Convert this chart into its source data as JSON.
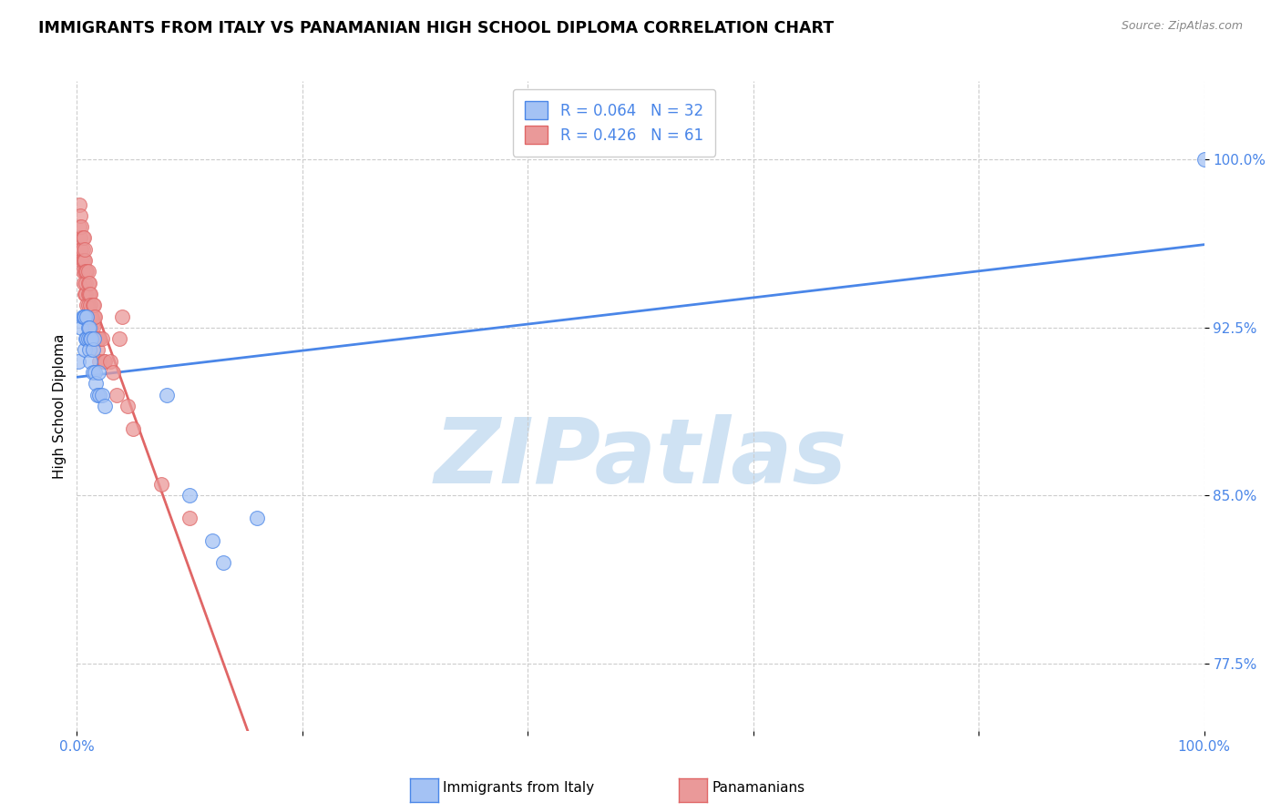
{
  "title": "IMMIGRANTS FROM ITALY VS PANAMANIAN HIGH SCHOOL DIPLOMA CORRELATION CHART",
  "source": "Source: ZipAtlas.com",
  "ylabel": "High School Diploma",
  "ytick_labels": [
    "77.5%",
    "85.0%",
    "92.5%",
    "100.0%"
  ],
  "ytick_values": [
    0.775,
    0.85,
    0.925,
    1.0
  ],
  "legend_label1": "Immigrants from Italy",
  "legend_label2": "Panamanians",
  "r_italy": "0.064",
  "n_italy": "32",
  "r_panama": "0.426",
  "n_panama": "61",
  "color_italy": "#a4c2f4",
  "color_panama": "#ea9999",
  "color_italy_line": "#4a86e8",
  "color_panama_line": "#e06666",
  "watermark_text": "ZIPatlas",
  "watermark_color": "#cfe2f3",
  "background_color": "#ffffff",
  "italy_x": [
    0.001,
    0.004,
    0.005,
    0.006,
    0.007,
    0.007,
    0.008,
    0.009,
    0.009,
    0.01,
    0.01,
    0.011,
    0.011,
    0.012,
    0.012,
    0.013,
    0.014,
    0.014,
    0.015,
    0.016,
    0.017,
    0.018,
    0.019,
    0.02,
    0.022,
    0.025,
    0.08,
    0.1,
    0.12,
    0.13,
    0.16,
    1.0
  ],
  "italy_y": [
    0.91,
    0.925,
    0.93,
    0.93,
    0.915,
    0.93,
    0.92,
    0.93,
    0.92,
    0.925,
    0.92,
    0.915,
    0.925,
    0.92,
    0.91,
    0.92,
    0.915,
    0.905,
    0.92,
    0.905,
    0.9,
    0.895,
    0.905,
    0.895,
    0.895,
    0.89,
    0.895,
    0.85,
    0.83,
    0.82,
    0.84,
    1.0
  ],
  "panama_x": [
    0.002,
    0.002,
    0.003,
    0.003,
    0.003,
    0.004,
    0.004,
    0.004,
    0.005,
    0.005,
    0.005,
    0.005,
    0.006,
    0.006,
    0.006,
    0.007,
    0.007,
    0.007,
    0.007,
    0.008,
    0.008,
    0.008,
    0.009,
    0.009,
    0.01,
    0.01,
    0.01,
    0.01,
    0.011,
    0.011,
    0.011,
    0.012,
    0.012,
    0.012,
    0.013,
    0.013,
    0.014,
    0.014,
    0.015,
    0.015,
    0.015,
    0.016,
    0.016,
    0.017,
    0.018,
    0.018,
    0.019,
    0.02,
    0.02,
    0.022,
    0.024,
    0.025,
    0.03,
    0.032,
    0.035,
    0.038,
    0.04,
    0.045,
    0.05,
    0.075,
    0.1
  ],
  "panama_y": [
    0.97,
    0.98,
    0.96,
    0.965,
    0.975,
    0.96,
    0.97,
    0.955,
    0.965,
    0.955,
    0.95,
    0.96,
    0.945,
    0.955,
    0.965,
    0.95,
    0.94,
    0.955,
    0.96,
    0.94,
    0.95,
    0.945,
    0.935,
    0.95,
    0.945,
    0.935,
    0.94,
    0.95,
    0.93,
    0.94,
    0.945,
    0.93,
    0.94,
    0.935,
    0.93,
    0.925,
    0.935,
    0.925,
    0.93,
    0.92,
    0.935,
    0.92,
    0.93,
    0.92,
    0.92,
    0.915,
    0.92,
    0.91,
    0.92,
    0.92,
    0.91,
    0.91,
    0.91,
    0.905,
    0.895,
    0.92,
    0.93,
    0.89,
    0.88,
    0.855,
    0.84
  ]
}
